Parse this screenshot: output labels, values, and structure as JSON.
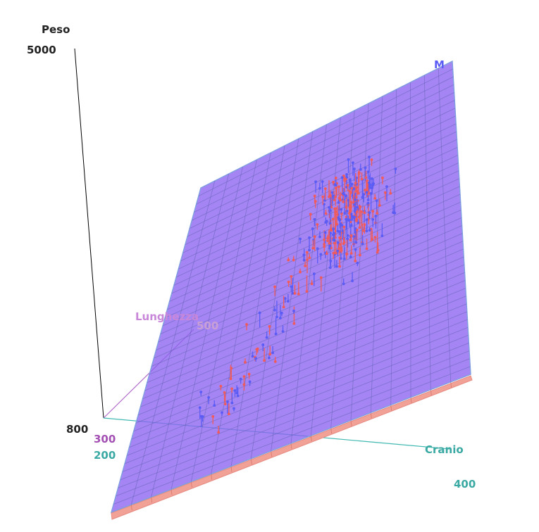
{
  "chart_data": {
    "type": "scatter",
    "dimensions": "3d",
    "axes": {
      "z": {
        "label": "Peso",
        "ticks": [
          "5000",
          "800"
        ],
        "range": [
          800,
          5000
        ]
      },
      "y": {
        "label": "Lunghezza",
        "ticks": [
          "300",
          "500"
        ],
        "range": [
          300,
          500
        ]
      },
      "x": {
        "label": "Cranio",
        "ticks": [
          "200",
          "400"
        ],
        "range": [
          200,
          400
        ]
      }
    },
    "series": [
      {
        "name": "M",
        "color": "#5b5bf5",
        "sample_count": 180
      },
      {
        "name": "",
        "color": "#f05a5a",
        "sample_count": 180
      }
    ],
    "surfaces": [
      {
        "color": "#8a63f0",
        "opacity": 0.75
      },
      {
        "color": "#f2a197",
        "opacity": 1.0
      }
    ],
    "grid": true,
    "legend": "none"
  },
  "colors": {
    "axis_z": "#000000",
    "axis_y": "#b069c8",
    "axis_x": "#3fb8b0",
    "tick_y": "#a34fb3",
    "tick_x": "#3aa9a3",
    "tick_z": "#222222"
  }
}
